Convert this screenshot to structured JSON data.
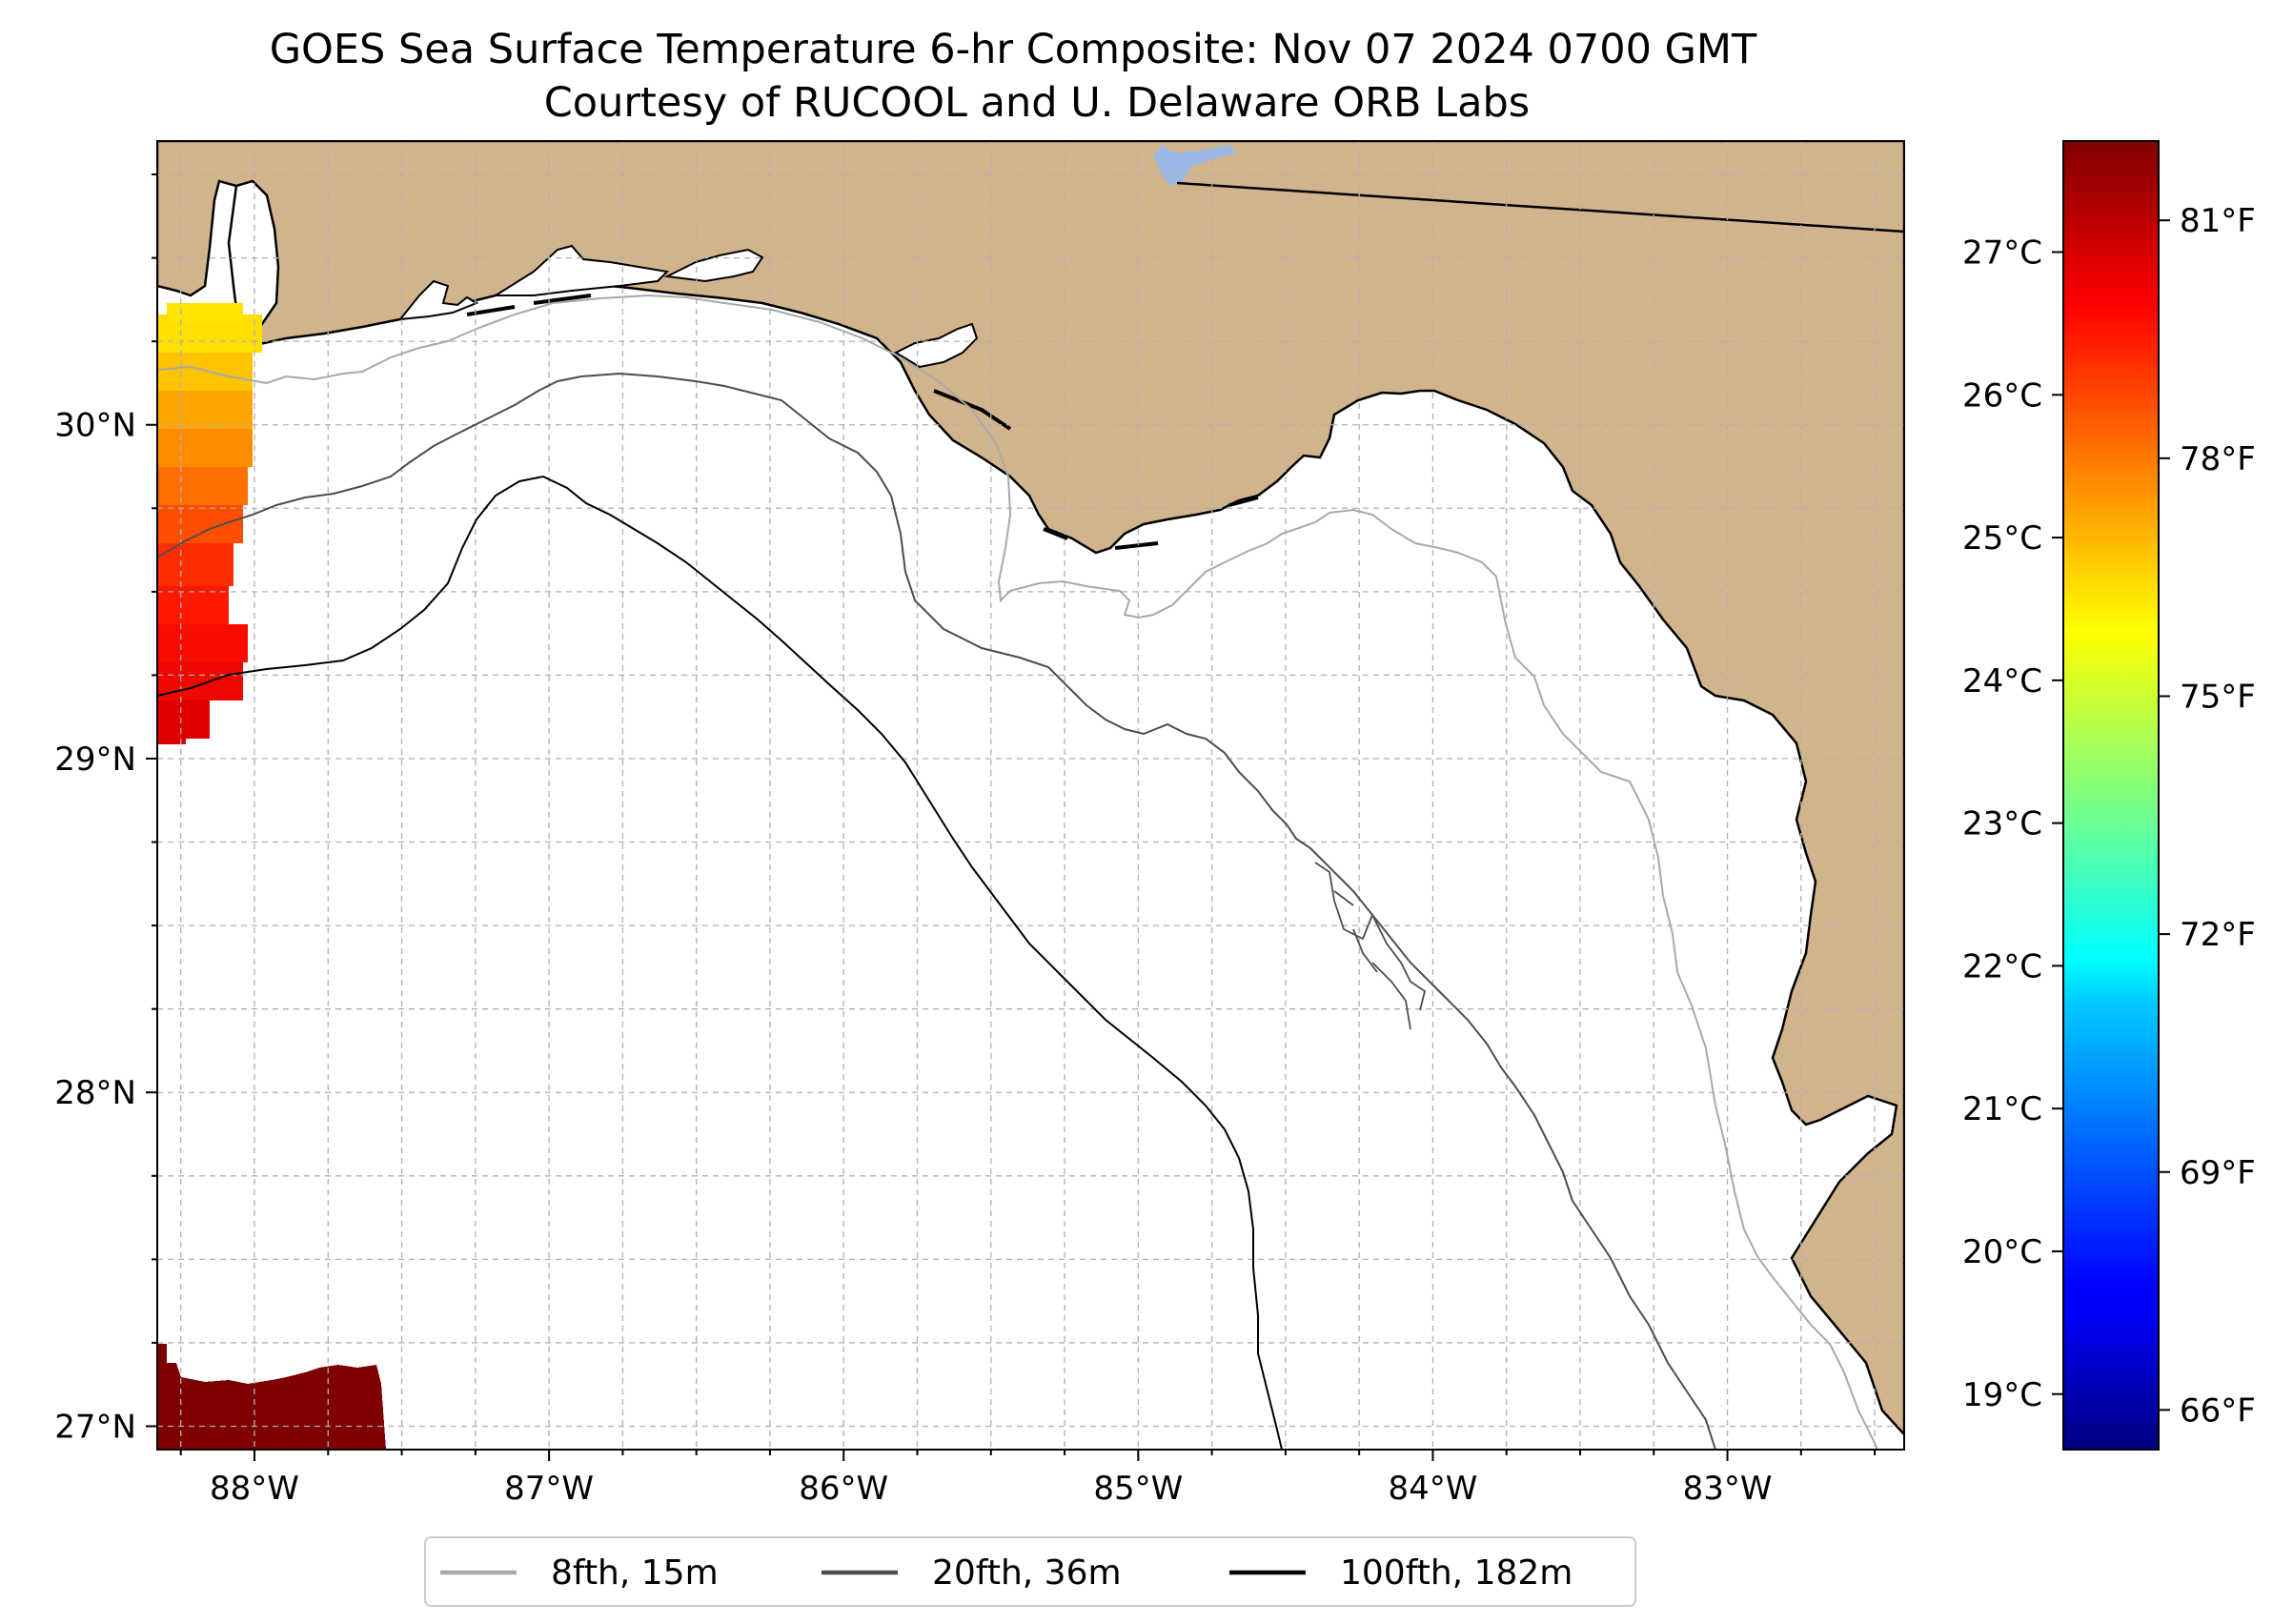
{
  "title": {
    "line1": "GOES Sea Surface Temperature 6-hr Composite: Nov 07 2024 0700 GMT",
    "line2": "Courtesy of RUCOOL and U. Delaware ORB Labs"
  },
  "map": {
    "lon_range": [
      -88.33,
      -82.4
    ],
    "lat_range": [
      26.93,
      30.85
    ],
    "lon_ticks": [
      {
        "value": -88,
        "label": "88°W"
      },
      {
        "value": -87,
        "label": "87°W"
      },
      {
        "value": -86,
        "label": "86°W"
      },
      {
        "value": -85,
        "label": "85°W"
      },
      {
        "value": -84,
        "label": "84°W"
      },
      {
        "value": -83,
        "label": "83°W"
      }
    ],
    "lat_ticks": [
      {
        "value": 30,
        "label": "30°N"
      },
      {
        "value": 29,
        "label": "29°N"
      },
      {
        "value": 28,
        "label": "28°N"
      },
      {
        "value": 27,
        "label": "27°N"
      }
    ],
    "grid_step_deg": 0.25,
    "land_color": "#d2b48c",
    "water_color": "#ffffff",
    "lake_color": "#9ab8e3"
  },
  "colorbar": {
    "colormap": "jet",
    "fahrenheit_range": [
      65.5,
      82.0
    ],
    "celsius_ticks": [
      "27°C",
      "26°C",
      "25°C",
      "24°C",
      "23°C",
      "22°C",
      "21°C",
      "20°C",
      "19°C"
    ],
    "fahrenheit_ticks": [
      "81°F",
      "78°F",
      "75°F",
      "72°F",
      "69°F",
      "66°F"
    ]
  },
  "legend": {
    "items": [
      {
        "label": "8fth, 15m",
        "color": "#a9a9a9"
      },
      {
        "label": "20fth, 36m",
        "color": "#4d4d4d"
      },
      {
        "label": "100fth, 182m",
        "color": "#000000"
      }
    ]
  }
}
